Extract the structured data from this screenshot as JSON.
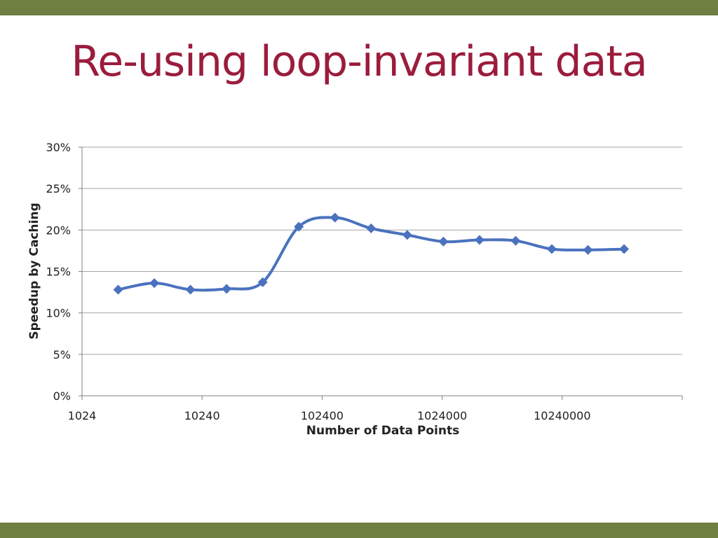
{
  "slide": {
    "title": "Re-using loop-invariant data"
  },
  "colors": {
    "header_bar": "#6f7e41",
    "title": "#9b1c3c",
    "series": "#4a72be",
    "grid": "#a6a6a6"
  },
  "chart_data": {
    "type": "line",
    "title": "",
    "xlabel": "Number of Data Points",
    "ylabel": "Speedup by Caching",
    "x_scale": "log10",
    "xlim": [
      1024,
      102400000
    ],
    "x_ticks": [
      1024,
      10240,
      102400,
      1024000,
      10240000
    ],
    "x_tick_labels": [
      "1024",
      "10240",
      "102400",
      "1024000",
      "10240000"
    ],
    "ylim": [
      0,
      30
    ],
    "y_ticks": [
      0,
      5,
      10,
      15,
      20,
      25,
      30
    ],
    "y_tick_labels": [
      "0%",
      "5%",
      "10%",
      "15%",
      "20%",
      "25%",
      "30%"
    ],
    "grid": "horizontal",
    "legend": "none",
    "marker": "diamond",
    "smooth": true,
    "series": [
      {
        "x": [
          2048,
          4096,
          8192,
          16384,
          32768,
          65536,
          131072,
          262144,
          524288,
          1048576,
          2097152,
          4194304,
          8388608,
          16777216,
          33554432
        ],
        "values": [
          12.8,
          13.6,
          12.8,
          12.9,
          13.7,
          20.4,
          21.5,
          20.2,
          19.4,
          18.6,
          18.8,
          18.7,
          17.7,
          17.6,
          17.7
        ]
      }
    ]
  }
}
